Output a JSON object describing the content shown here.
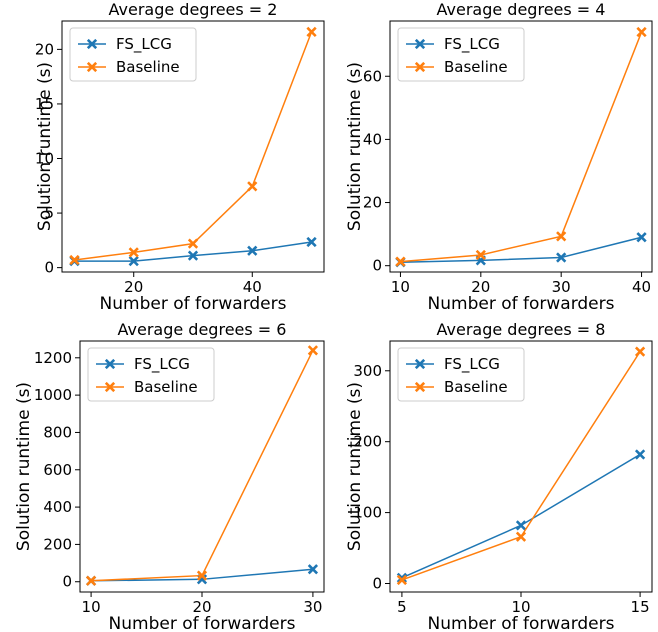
{
  "colors": {
    "fs_lcg": "#1f77b4",
    "baseline": "#ff7f0e",
    "frame": "#000000"
  },
  "chart_data": [
    {
      "type": "line",
      "title": "Average degrees = 2",
      "xlabel": "Number of forwarders",
      "ylabel": "Solution runtime (s)",
      "xlim": [
        7.9,
        52.1
      ],
      "ylim": [
        -0.4,
        22.6
      ],
      "xticks": [
        20,
        40
      ],
      "yticks": [
        0,
        5,
        10,
        15,
        20
      ],
      "legend": "top-left",
      "grid": false,
      "series": [
        {
          "name": "FS_LCG",
          "color": "#1f77b4",
          "x": [
            10,
            20,
            30,
            40,
            50
          ],
          "y": [
            0.6,
            0.6,
            1.1,
            1.55,
            2.35
          ]
        },
        {
          "name": "Baseline",
          "color": "#ff7f0e",
          "x": [
            10,
            20,
            30,
            40,
            50
          ],
          "y": [
            0.7,
            1.4,
            2.2,
            7.45,
            21.6
          ]
        }
      ]
    },
    {
      "type": "line",
      "title": "Average degrees = 4",
      "xlabel": "Number of forwarders",
      "ylabel": "Solution runtime (s)",
      "xlim": [
        8.7,
        41.3
      ],
      "ylim": [
        -2.0,
        77.5
      ],
      "xticks": [
        10,
        20,
        30,
        40
      ],
      "yticks": [
        0,
        20,
        40,
        60
      ],
      "legend": "top-left",
      "grid": false,
      "series": [
        {
          "name": "FS_LCG",
          "color": "#1f77b4",
          "x": [
            10,
            20,
            30,
            40
          ],
          "y": [
            1.1,
            1.7,
            2.6,
            9.0
          ]
        },
        {
          "name": "Baseline",
          "color": "#ff7f0e",
          "x": [
            10,
            20,
            30,
            40
          ],
          "y": [
            1.3,
            3.4,
            9.3,
            74.0
          ]
        }
      ]
    },
    {
      "type": "line",
      "title": "Average degrees = 6",
      "xlabel": "Number of forwarders",
      "ylabel": "Solution runtime (s)",
      "xlim": [
        9.0,
        31.0
      ],
      "ylim": [
        -55,
        1290
      ],
      "xticks": [
        10,
        20,
        30
      ],
      "yticks": [
        0,
        200,
        400,
        600,
        800,
        1000,
        1200
      ],
      "legend": "top-left",
      "grid": false,
      "series": [
        {
          "name": "FS_LCG",
          "color": "#1f77b4",
          "x": [
            10,
            20,
            30
          ],
          "y": [
            5,
            13,
            67
          ]
        },
        {
          "name": "Baseline",
          "color": "#ff7f0e",
          "x": [
            10,
            20,
            30
          ],
          "y": [
            5,
            33,
            1240
          ]
        }
      ]
    },
    {
      "type": "line",
      "title": "Average degrees = 8",
      "xlabel": "Number of forwarders",
      "ylabel": "Solution runtime (s)",
      "xlim": [
        4.5,
        15.5
      ],
      "ylim": [
        -12,
        342
      ],
      "xticks": [
        5,
        10,
        15
      ],
      "yticks": [
        0,
        100,
        200,
        300
      ],
      "legend": "top-left",
      "grid": false,
      "series": [
        {
          "name": "FS_LCG",
          "color": "#1f77b4",
          "x": [
            5,
            10,
            15
          ],
          "y": [
            8,
            82,
            182
          ]
        },
        {
          "name": "Baseline",
          "color": "#ff7f0e",
          "x": [
            5,
            10,
            15
          ],
          "y": [
            5,
            66,
            327
          ]
        }
      ]
    }
  ]
}
